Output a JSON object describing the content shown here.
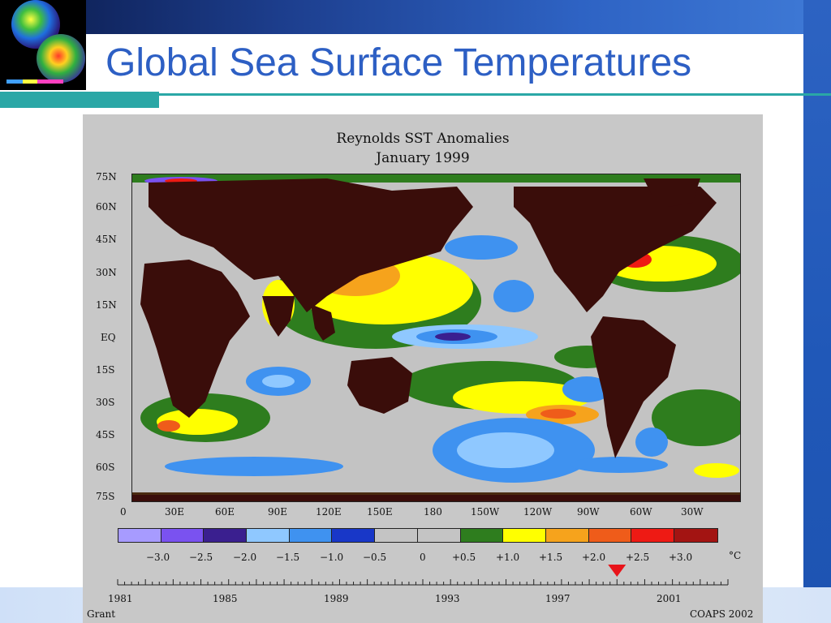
{
  "slide": {
    "title": "Global Sea Surface Temperatures",
    "colors": {
      "title": "#2d5fc4",
      "teal": "#2aa7a6",
      "band": "#1d3f8f"
    }
  },
  "figure": {
    "title_line1": "Reynolds SST Anomalies",
    "title_line2": "January 1999",
    "lat_labels": [
      "75N",
      "60N",
      "45N",
      "30N",
      "15N",
      "EQ",
      "15S",
      "30S",
      "45S",
      "60S",
      "75S"
    ],
    "lon_labels": [
      "0",
      "30E",
      "60E",
      "90E",
      "120E",
      "150E",
      "180",
      "150W",
      "120W",
      "90W",
      "60W",
      "30W"
    ],
    "colorbar": {
      "colors": [
        "#a79bff",
        "#7a52f0",
        "#3a1f8f",
        "#8fc8ff",
        "#3f92f0",
        "#1837c8",
        "#c4c4c4",
        "#c4c4c4",
        "#2e7d1e",
        "#ffff00",
        "#f6a31c",
        "#ef5c1a",
        "#ee1a14",
        "#a31412"
      ],
      "labels": [
        "−3.0",
        "−2.5",
        "−2.0",
        "−1.5",
        "−1.0",
        "−0.5",
        "0",
        "+0.5",
        "+1.0",
        "+1.5",
        "+2.0",
        "+2.5",
        "+3.0"
      ],
      "unit": "°C"
    },
    "timeline": {
      "year_labels": [
        "1981",
        "1985",
        "1989",
        "1993",
        "1997",
        "2001"
      ],
      "marker_year": 1999,
      "marker_color": "#e8141a"
    },
    "credit_left": "Grant",
    "credit_right": "COAPS 2002"
  }
}
